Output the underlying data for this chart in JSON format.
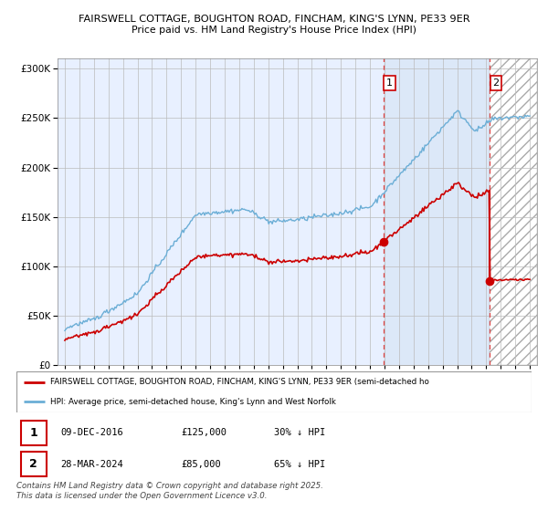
{
  "title1": "FAIRSWELL COTTAGE, BOUGHTON ROAD, FINCHAM, KING'S LYNN, PE33 9ER",
  "title2": "Price paid vs. HM Land Registry's House Price Index (HPI)",
  "legend_label1": "FAIRSWELL COTTAGE, BOUGHTON ROAD, FINCHAM, KING'S LYNN, PE33 9ER (semi-detached ho",
  "legend_label2": "HPI: Average price, semi-detached house, King's Lynn and West Norfolk",
  "footer": "Contains HM Land Registry data © Crown copyright and database right 2025.\nThis data is licensed under the Open Government Licence v3.0.",
  "table_rows": [
    {
      "num": "1",
      "date": "09-DEC-2016",
      "price": "£125,000",
      "hpi": "30% ↓ HPI"
    },
    {
      "num": "2",
      "date": "28-MAR-2024",
      "price": "£85,000",
      "hpi": "65% ↓ HPI"
    }
  ],
  "sale1_year": 2016.94,
  "sale1_price": 125000,
  "sale2_year": 2024.24,
  "sale2_price": 85000,
  "hpi_color": "#6baed6",
  "sale_color": "#cc0000",
  "vline_color": "#dd4444",
  "bg_color": "#e8f0ff",
  "shade_color": "#dce8f8",
  "grid_color": "#bbbbbb",
  "hatch_color": "#cccccc",
  "ylim_max": 310000,
  "xlim_start": 1994.5,
  "xlim_end": 2027.5
}
